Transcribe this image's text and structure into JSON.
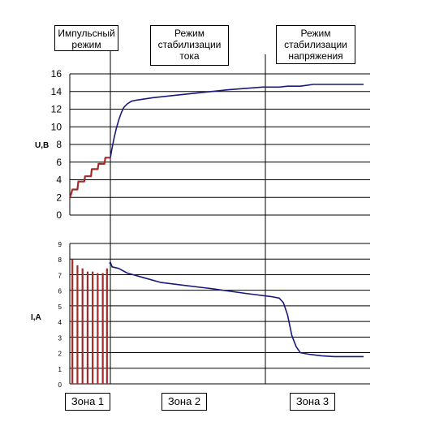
{
  "chart_data": [
    {
      "type": "line",
      "ylabel": "U,B",
      "ylim": [
        0,
        16
      ],
      "yticks": [
        0,
        2,
        4,
        6,
        8,
        10,
        12,
        14,
        16
      ],
      "series": [
        {
          "color": "#1a1a7a",
          "points": [
            [
              0,
              6.5
            ],
            [
              0.2,
              7.6
            ],
            [
              0.45,
              8.8
            ],
            [
              0.7,
              9.8
            ],
            [
              1.0,
              10.8
            ],
            [
              1.3,
              11.6
            ],
            [
              1.6,
              12.2
            ],
            [
              2.0,
              12.6
            ],
            [
              2.5,
              12.9
            ],
            [
              3.0,
              13.0
            ],
            [
              5.0,
              13.3
            ],
            [
              8.0,
              13.6
            ],
            [
              11.0,
              13.9
            ],
            [
              14.0,
              14.2
            ],
            [
              18.0,
              14.5
            ],
            [
              20.0,
              14.5
            ],
            [
              21.0,
              14.6
            ],
            [
              22.5,
              14.6
            ],
            [
              24.0,
              14.8
            ],
            [
              30.0,
              14.8
            ]
          ]
        },
        {
          "color": "#a52a2a",
          "points": [
            [
              -4.8,
              1.9
            ],
            [
              -4.5,
              2.9
            ],
            [
              -3.9,
              2.9
            ],
            [
              -3.8,
              3.8
            ],
            [
              -3.1,
              3.8
            ],
            [
              -3.0,
              4.4
            ],
            [
              -2.3,
              4.4
            ],
            [
              -2.2,
              5.2
            ],
            [
              -1.5,
              5.2
            ],
            [
              -1.4,
              5.8
            ],
            [
              -0.7,
              5.8
            ],
            [
              -0.6,
              6.5
            ],
            [
              0,
              6.5
            ]
          ]
        }
      ]
    },
    {
      "type": "line",
      "ylabel": "I,A",
      "ylim": [
        0,
        9
      ],
      "yticks": [
        0,
        1,
        2,
        3,
        4,
        5,
        6,
        7,
        8,
        9
      ],
      "series": [
        {
          "color": "#1a1a7a",
          "points": [
            [
              -0.1,
              7.7
            ],
            [
              0,
              7.8
            ],
            [
              0.2,
              7.5
            ],
            [
              1.0,
              7.4
            ],
            [
              2.0,
              7.1
            ],
            [
              4.0,
              6.8
            ],
            [
              6.0,
              6.5
            ],
            [
              9.0,
              6.3
            ],
            [
              12.0,
              6.1
            ],
            [
              16.0,
              5.8
            ],
            [
              19.0,
              5.6
            ],
            [
              20.0,
              5.5
            ],
            [
              20.5,
              5.2
            ],
            [
              21.0,
              4.4
            ],
            [
              21.5,
              3.1
            ],
            [
              22.0,
              2.4
            ],
            [
              22.5,
              2.0
            ],
            [
              23.5,
              1.9
            ],
            [
              25.0,
              1.8
            ],
            [
              26.5,
              1.75
            ],
            [
              30.0,
              1.75
            ]
          ]
        },
        {
          "color": "#a52a2a",
          "pulses": [
            [
              -4.5,
              8.0
            ],
            [
              -3.9,
              7.6
            ],
            [
              -3.3,
              7.4
            ],
            [
              -2.7,
              7.2
            ],
            [
              -2.1,
              7.2
            ],
            [
              -1.5,
              7.1
            ],
            [
              -0.9,
              7.1
            ],
            [
              -0.4,
              7.4
            ]
          ]
        }
      ]
    }
  ],
  "modes": {
    "impulse": "Импульсный\nрежим",
    "current": "Режим\nстабилизации\nтока",
    "voltage": "Режим\nстабилизации\nнапряжения"
  },
  "zones": [
    "Зона 1",
    "Зона 2",
    "Зона 3"
  ]
}
